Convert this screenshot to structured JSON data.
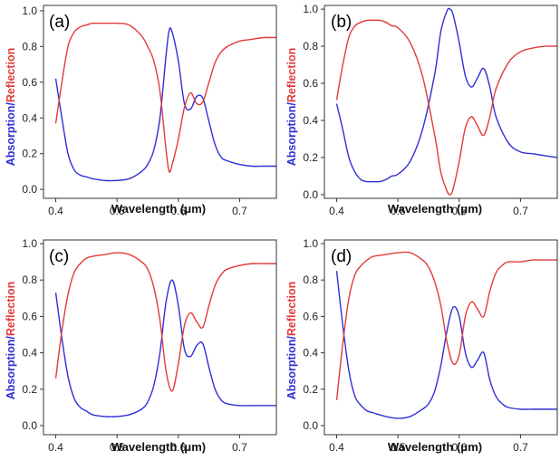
{
  "colors": {
    "absorption": "#2f2fd6",
    "reflection": "#e33a3a"
  },
  "chart_data": [
    {
      "type": "line",
      "panel_label": "(a)",
      "xlabel": "Wavelength (μm)",
      "ylabel_parts": [
        "Absorption",
        "/",
        "Reflection"
      ],
      "xlim": [
        0.38,
        0.76
      ],
      "ylim": [
        -0.05,
        1.03
      ],
      "xticks": [
        0.4,
        0.5,
        0.6,
        0.7
      ],
      "xtick_labels": [
        "0.4",
        "0.5",
        "0.6",
        "0.7"
      ],
      "yticks": [
        0.0,
        0.2,
        0.4,
        0.6,
        0.8,
        1.0
      ],
      "ytick_labels": [
        "0.0",
        "0.2",
        "0.4",
        "0.6",
        "0.8",
        "1.0"
      ],
      "grid": false,
      "series": [
        {
          "name": "Absorption",
          "color": "#2f2fd6",
          "x": [
            0.4,
            0.41,
            0.42,
            0.43,
            0.44,
            0.45,
            0.46,
            0.48,
            0.5,
            0.52,
            0.54,
            0.55,
            0.56,
            0.57,
            0.58,
            0.585,
            0.59,
            0.6,
            0.61,
            0.62,
            0.63,
            0.64,
            0.65,
            0.66,
            0.67,
            0.68,
            0.7,
            0.72,
            0.74,
            0.76
          ],
          "y": [
            0.62,
            0.4,
            0.2,
            0.11,
            0.08,
            0.07,
            0.06,
            0.05,
            0.05,
            0.06,
            0.1,
            0.14,
            0.22,
            0.4,
            0.75,
            0.89,
            0.88,
            0.72,
            0.48,
            0.45,
            0.52,
            0.51,
            0.38,
            0.25,
            0.18,
            0.16,
            0.14,
            0.13,
            0.13,
            0.13
          ]
        },
        {
          "name": "Reflection",
          "color": "#e33a3a",
          "x": [
            0.4,
            0.41,
            0.42,
            0.43,
            0.44,
            0.45,
            0.46,
            0.48,
            0.5,
            0.52,
            0.54,
            0.55,
            0.56,
            0.57,
            0.58,
            0.585,
            0.59,
            0.6,
            0.61,
            0.62,
            0.63,
            0.64,
            0.65,
            0.66,
            0.67,
            0.68,
            0.7,
            0.72,
            0.74,
            0.76
          ],
          "y": [
            0.37,
            0.6,
            0.8,
            0.88,
            0.91,
            0.92,
            0.93,
            0.93,
            0.93,
            0.92,
            0.86,
            0.8,
            0.72,
            0.55,
            0.22,
            0.1,
            0.14,
            0.28,
            0.46,
            0.54,
            0.48,
            0.49,
            0.6,
            0.71,
            0.77,
            0.8,
            0.83,
            0.84,
            0.85,
            0.85
          ]
        }
      ]
    },
    {
      "type": "line",
      "panel_label": "(b)",
      "xlabel": "Wavelength (μm)",
      "ylabel_parts": [
        "Absorption",
        "/",
        "Reflection"
      ],
      "xlim": [
        0.38,
        0.76
      ],
      "ylim": [
        -0.02,
        1.02
      ],
      "xticks": [
        0.4,
        0.5,
        0.6,
        0.7
      ],
      "xtick_labels": [
        "0.4",
        "0.5",
        "0.6",
        "0.7"
      ],
      "yticks": [
        0.0,
        0.2,
        0.4,
        0.6,
        0.8,
        1.0
      ],
      "ytick_labels": [
        "0.0",
        "0.2",
        "0.4",
        "0.6",
        "0.8",
        "1.0"
      ],
      "grid": false,
      "series": [
        {
          "name": "Absorption",
          "color": "#2f2fd6",
          "x": [
            0.4,
            0.41,
            0.42,
            0.43,
            0.44,
            0.45,
            0.46,
            0.47,
            0.48,
            0.49,
            0.5,
            0.52,
            0.54,
            0.56,
            0.57,
            0.58,
            0.585,
            0.59,
            0.6,
            0.61,
            0.62,
            0.63,
            0.64,
            0.65,
            0.66,
            0.68,
            0.7,
            0.72,
            0.74,
            0.76
          ],
          "y": [
            0.49,
            0.35,
            0.2,
            0.12,
            0.08,
            0.07,
            0.07,
            0.07,
            0.08,
            0.1,
            0.11,
            0.18,
            0.35,
            0.65,
            0.88,
            0.99,
            1.0,
            0.97,
            0.82,
            0.64,
            0.58,
            0.63,
            0.68,
            0.58,
            0.42,
            0.28,
            0.23,
            0.22,
            0.21,
            0.2
          ]
        },
        {
          "name": "Reflection",
          "color": "#e33a3a",
          "x": [
            0.4,
            0.41,
            0.42,
            0.43,
            0.44,
            0.45,
            0.46,
            0.47,
            0.48,
            0.49,
            0.5,
            0.52,
            0.54,
            0.56,
            0.57,
            0.58,
            0.585,
            0.59,
            0.6,
            0.61,
            0.62,
            0.63,
            0.64,
            0.65,
            0.66,
            0.68,
            0.7,
            0.72,
            0.74,
            0.76
          ],
          "y": [
            0.51,
            0.7,
            0.85,
            0.91,
            0.93,
            0.94,
            0.94,
            0.94,
            0.93,
            0.91,
            0.9,
            0.82,
            0.64,
            0.32,
            0.12,
            0.02,
            0.0,
            0.03,
            0.18,
            0.36,
            0.42,
            0.37,
            0.32,
            0.42,
            0.57,
            0.71,
            0.77,
            0.79,
            0.8,
            0.8
          ]
        }
      ]
    },
    {
      "type": "line",
      "panel_label": "(c)",
      "xlabel": "Wavelength (μm)",
      "ylabel_parts": [
        "Absorption",
        "/",
        "Reflection"
      ],
      "xlim": [
        0.38,
        0.76
      ],
      "ylim": [
        -0.05,
        1.02
      ],
      "xticks": [
        0.4,
        0.5,
        0.6,
        0.7
      ],
      "xtick_labels": [
        "0.4",
        "0.5",
        "0.6",
        "0.7"
      ],
      "yticks": [
        0.0,
        0.2,
        0.4,
        0.6,
        0.8,
        1.0
      ],
      "ytick_labels": [
        "0.0",
        "0.2",
        "0.4",
        "0.6",
        "0.8",
        "1.0"
      ],
      "grid": false,
      "series": [
        {
          "name": "Absorption",
          "color": "#2f2fd6",
          "x": [
            0.4,
            0.41,
            0.42,
            0.43,
            0.44,
            0.45,
            0.46,
            0.48,
            0.5,
            0.52,
            0.54,
            0.55,
            0.56,
            0.57,
            0.58,
            0.59,
            0.6,
            0.61,
            0.62,
            0.63,
            0.64,
            0.65,
            0.66,
            0.67,
            0.68,
            0.7,
            0.72,
            0.74,
            0.76
          ],
          "y": [
            0.73,
            0.48,
            0.27,
            0.15,
            0.1,
            0.08,
            0.06,
            0.05,
            0.05,
            0.06,
            0.09,
            0.13,
            0.22,
            0.4,
            0.68,
            0.8,
            0.66,
            0.42,
            0.38,
            0.44,
            0.45,
            0.32,
            0.2,
            0.14,
            0.12,
            0.11,
            0.11,
            0.11,
            0.11
          ]
        },
        {
          "name": "Reflection",
          "color": "#e33a3a",
          "x": [
            0.4,
            0.41,
            0.42,
            0.43,
            0.44,
            0.45,
            0.46,
            0.48,
            0.5,
            0.52,
            0.54,
            0.55,
            0.56,
            0.57,
            0.58,
            0.59,
            0.6,
            0.61,
            0.62,
            0.63,
            0.64,
            0.65,
            0.66,
            0.67,
            0.68,
            0.7,
            0.72,
            0.74,
            0.76
          ],
          "y": [
            0.26,
            0.52,
            0.72,
            0.84,
            0.89,
            0.92,
            0.93,
            0.94,
            0.95,
            0.94,
            0.9,
            0.86,
            0.76,
            0.58,
            0.3,
            0.19,
            0.34,
            0.55,
            0.62,
            0.57,
            0.54,
            0.66,
            0.77,
            0.83,
            0.86,
            0.88,
            0.89,
            0.89,
            0.89
          ]
        }
      ]
    },
    {
      "type": "line",
      "panel_label": "(d)",
      "xlabel": "Wavelength (μm)",
      "ylabel_parts": [
        "Absorption",
        "/",
        "Reflection"
      ],
      "xlim": [
        0.38,
        0.76
      ],
      "ylim": [
        -0.05,
        1.02
      ],
      "xticks": [
        0.4,
        0.5,
        0.6,
        0.7
      ],
      "xtick_labels": [
        "0.4",
        "0.5",
        "0.6",
        "0.7"
      ],
      "yticks": [
        0.0,
        0.2,
        0.4,
        0.6,
        0.8,
        1.0
      ],
      "ytick_labels": [
        "0.0",
        "0.2",
        "0.4",
        "0.6",
        "0.8",
        "1.0"
      ],
      "grid": false,
      "series": [
        {
          "name": "Absorption",
          "color": "#2f2fd6",
          "x": [
            0.4,
            0.41,
            0.42,
            0.43,
            0.44,
            0.45,
            0.46,
            0.48,
            0.5,
            0.52,
            0.54,
            0.55,
            0.56,
            0.57,
            0.58,
            0.59,
            0.6,
            0.61,
            0.62,
            0.63,
            0.64,
            0.65,
            0.66,
            0.67,
            0.68,
            0.7,
            0.72,
            0.74,
            0.76
          ],
          "y": [
            0.85,
            0.55,
            0.3,
            0.16,
            0.11,
            0.08,
            0.07,
            0.05,
            0.04,
            0.05,
            0.09,
            0.12,
            0.19,
            0.33,
            0.52,
            0.65,
            0.6,
            0.4,
            0.32,
            0.36,
            0.4,
            0.25,
            0.16,
            0.12,
            0.1,
            0.09,
            0.09,
            0.09,
            0.09
          ]
        },
        {
          "name": "Reflection",
          "color": "#e33a3a",
          "x": [
            0.4,
            0.41,
            0.42,
            0.43,
            0.44,
            0.45,
            0.46,
            0.48,
            0.5,
            0.52,
            0.54,
            0.55,
            0.56,
            0.57,
            0.58,
            0.59,
            0.6,
            0.61,
            0.62,
            0.63,
            0.64,
            0.65,
            0.66,
            0.67,
            0.68,
            0.7,
            0.72,
            0.74,
            0.76
          ],
          "y": [
            0.14,
            0.45,
            0.7,
            0.83,
            0.88,
            0.91,
            0.93,
            0.94,
            0.95,
            0.95,
            0.91,
            0.87,
            0.79,
            0.66,
            0.46,
            0.34,
            0.39,
            0.6,
            0.68,
            0.64,
            0.6,
            0.74,
            0.84,
            0.88,
            0.9,
            0.9,
            0.91,
            0.91,
            0.91
          ]
        }
      ]
    }
  ]
}
